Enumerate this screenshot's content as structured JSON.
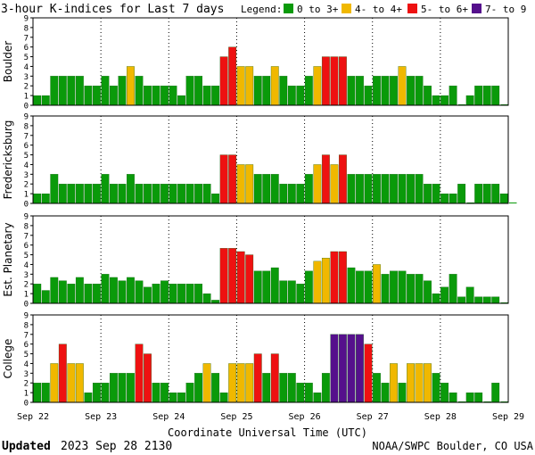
{
  "title": "3-hour K-indices for Last 7 days",
  "legend": {
    "label": "Legend:",
    "items": [
      {
        "label": "0 to 3+",
        "color": "#0a9a0a"
      },
      {
        "label": "4- to 4+",
        "color": "#f0b800"
      },
      {
        "label": "5- to 6+",
        "color": "#ee1111"
      },
      {
        "label": "7- to 9",
        "color": "#55108c"
      }
    ]
  },
  "xlabel": "Coordinate Universal Time (UTC)",
  "footer": {
    "updated_label": "Updated",
    "updated_value": "2023 Sep 28 2130",
    "credit": "NOAA/SWPC Boulder, CO USA"
  },
  "chart_data": [
    {
      "type": "bar",
      "station": "Boulder",
      "ylim": [
        0,
        9
      ],
      "ticks": [
        "0",
        "1",
        "2",
        "3",
        "4",
        "5",
        "6",
        "7",
        "8",
        "9"
      ],
      "x_ticks": [
        "Sep 22",
        "Sep 23",
        "Sep 24",
        "Sep 25",
        "Sep 26",
        "Sep 27",
        "Sep 28",
        "Sep 29"
      ],
      "grid": true,
      "values": [
        1,
        1,
        3,
        3,
        3,
        3,
        2,
        2,
        3,
        2,
        3,
        4,
        3,
        2,
        2,
        2,
        2,
        1,
        3,
        3,
        2,
        2,
        5,
        6,
        4,
        4,
        3,
        3,
        4,
        3,
        2,
        2,
        3,
        4,
        5,
        5,
        5,
        3,
        3,
        2,
        3,
        3,
        3,
        4,
        3,
        3,
        2,
        1,
        1,
        2,
        0,
        1,
        2,
        2,
        2,
        0
      ]
    },
    {
      "type": "bar",
      "station": "Fredericksburg",
      "ylim": [
        0,
        9
      ],
      "ticks": [
        "0",
        "1",
        "2",
        "3",
        "4",
        "5",
        "6",
        "7",
        "8",
        "9"
      ],
      "x_ticks": [
        "Sep 22",
        "Sep 23",
        "Sep 24",
        "Sep 25",
        "Sep 26",
        "Sep 27",
        "Sep 28",
        "Sep 29"
      ],
      "grid": true,
      "values": [
        1,
        1,
        3,
        2,
        2,
        2,
        2,
        2,
        3,
        2,
        2,
        3,
        2,
        2,
        2,
        2,
        2,
        2,
        2,
        2,
        2,
        1,
        5,
        5,
        4,
        4,
        3,
        3,
        3,
        2,
        2,
        2,
        3,
        4,
        5,
        4,
        5,
        3,
        3,
        3,
        3,
        3,
        3,
        3,
        3,
        3,
        2,
        2,
        1,
        1,
        2,
        0,
        2,
        2,
        2,
        1,
        0
      ]
    },
    {
      "type": "bar",
      "station": "Est. Planetary",
      "ylim": [
        0,
        9
      ],
      "ticks": [
        "0",
        "1",
        "2",
        "3",
        "4",
        "5",
        "6",
        "7",
        "8",
        "9"
      ],
      "x_ticks": [
        "Sep 22",
        "Sep 23",
        "Sep 24",
        "Sep 25",
        "Sep 26",
        "Sep 27",
        "Sep 28",
        "Sep 29"
      ],
      "grid": true,
      "values": [
        2,
        1.33,
        2.67,
        2.33,
        2,
        2.67,
        2,
        2,
        3,
        2.67,
        2.33,
        2.67,
        2.33,
        1.67,
        2,
        2.33,
        2,
        2,
        2,
        2,
        1,
        0.33,
        5.67,
        5.67,
        5.33,
        5,
        3.33,
        3.33,
        3.67,
        2.33,
        2.33,
        2,
        3.33,
        4.33,
        4.67,
        5.33,
        5.33,
        3.67,
        3.33,
        3.33,
        4,
        3,
        3.33,
        3.33,
        3,
        3,
        2.33,
        1,
        1.67,
        3,
        0.67,
        1.67,
        0.67,
        0.67,
        0.67,
        0
      ]
    },
    {
      "type": "bar",
      "station": "College",
      "ylim": [
        0,
        9
      ],
      "ticks": [
        "0",
        "1",
        "2",
        "3",
        "4",
        "5",
        "6",
        "7",
        "8",
        "9"
      ],
      "x_ticks": [
        "Sep 22",
        "Sep 23",
        "Sep 24",
        "Sep 25",
        "Sep 26",
        "Sep 27",
        "Sep 28",
        "Sep 29"
      ],
      "grid": true,
      "values": [
        2,
        2,
        4,
        6,
        4,
        4,
        1,
        2,
        2,
        3,
        3,
        3,
        6,
        5,
        2,
        2,
        1,
        1,
        2,
        3,
        4,
        3,
        1,
        4,
        4,
        4,
        5,
        3,
        5,
        3,
        3,
        2,
        2,
        1,
        3,
        7,
        7,
        7,
        7,
        6,
        3,
        2,
        4,
        2,
        4,
        4,
        4,
        3,
        2,
        1,
        0,
        1,
        1,
        0,
        2,
        0
      ]
    }
  ]
}
